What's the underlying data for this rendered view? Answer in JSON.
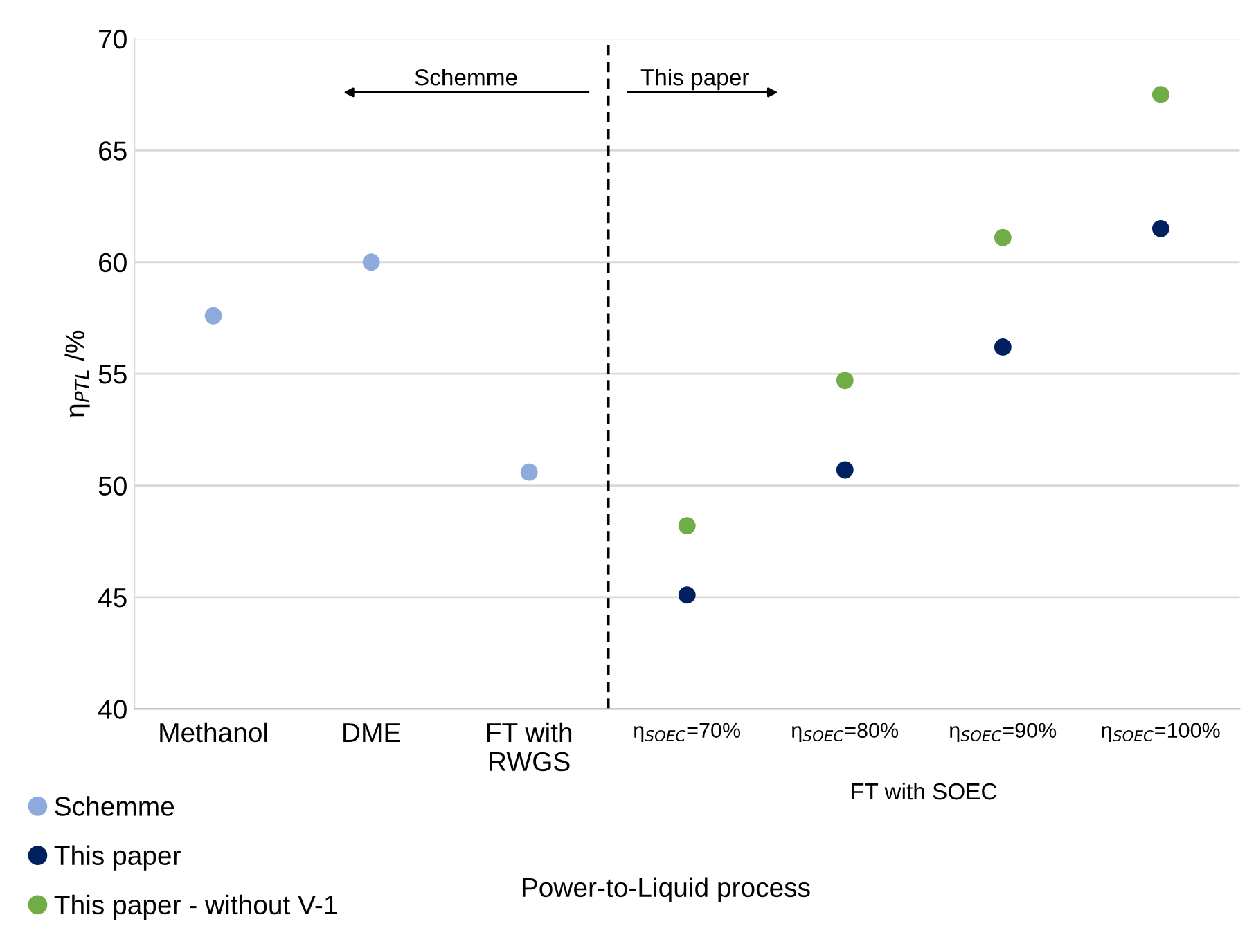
{
  "chart_data": {
    "type": "scatter",
    "ylabel": "η$_{PTL}$ /%",
    "xlabel": "Power-to-Liquid process",
    "categories": [
      "Methanol",
      "DME",
      "FT with\nRWGS",
      "η$_{SOEC}$=70%",
      "η$_{SOEC}$=80%",
      "η$_{SOEC}$=90%",
      "η$_{SOEC}$=100%"
    ],
    "series": [
      {
        "name": "Schemme",
        "color": "#8faadc",
        "values": [
          57.6,
          60.0,
          50.6,
          null,
          null,
          null,
          null
        ]
      },
      {
        "name": "This paper",
        "color": "#002060",
        "values": [
          null,
          null,
          null,
          45.1,
          50.7,
          56.2,
          61.5
        ]
      },
      {
        "name": "This paper - without V-1",
        "color": "#70ad47",
        "values": [
          null,
          null,
          null,
          48.2,
          54.7,
          61.1,
          67.5
        ]
      }
    ],
    "ylim": [
      40,
      70
    ],
    "yticks": [
      40,
      45,
      50,
      55,
      60,
      65,
      70
    ],
    "grid": "y",
    "legend": "bottom left",
    "marker": "circle",
    "annotations": [
      "Schemme",
      "This paper",
      "FT with SOEC"
    ]
  }
}
